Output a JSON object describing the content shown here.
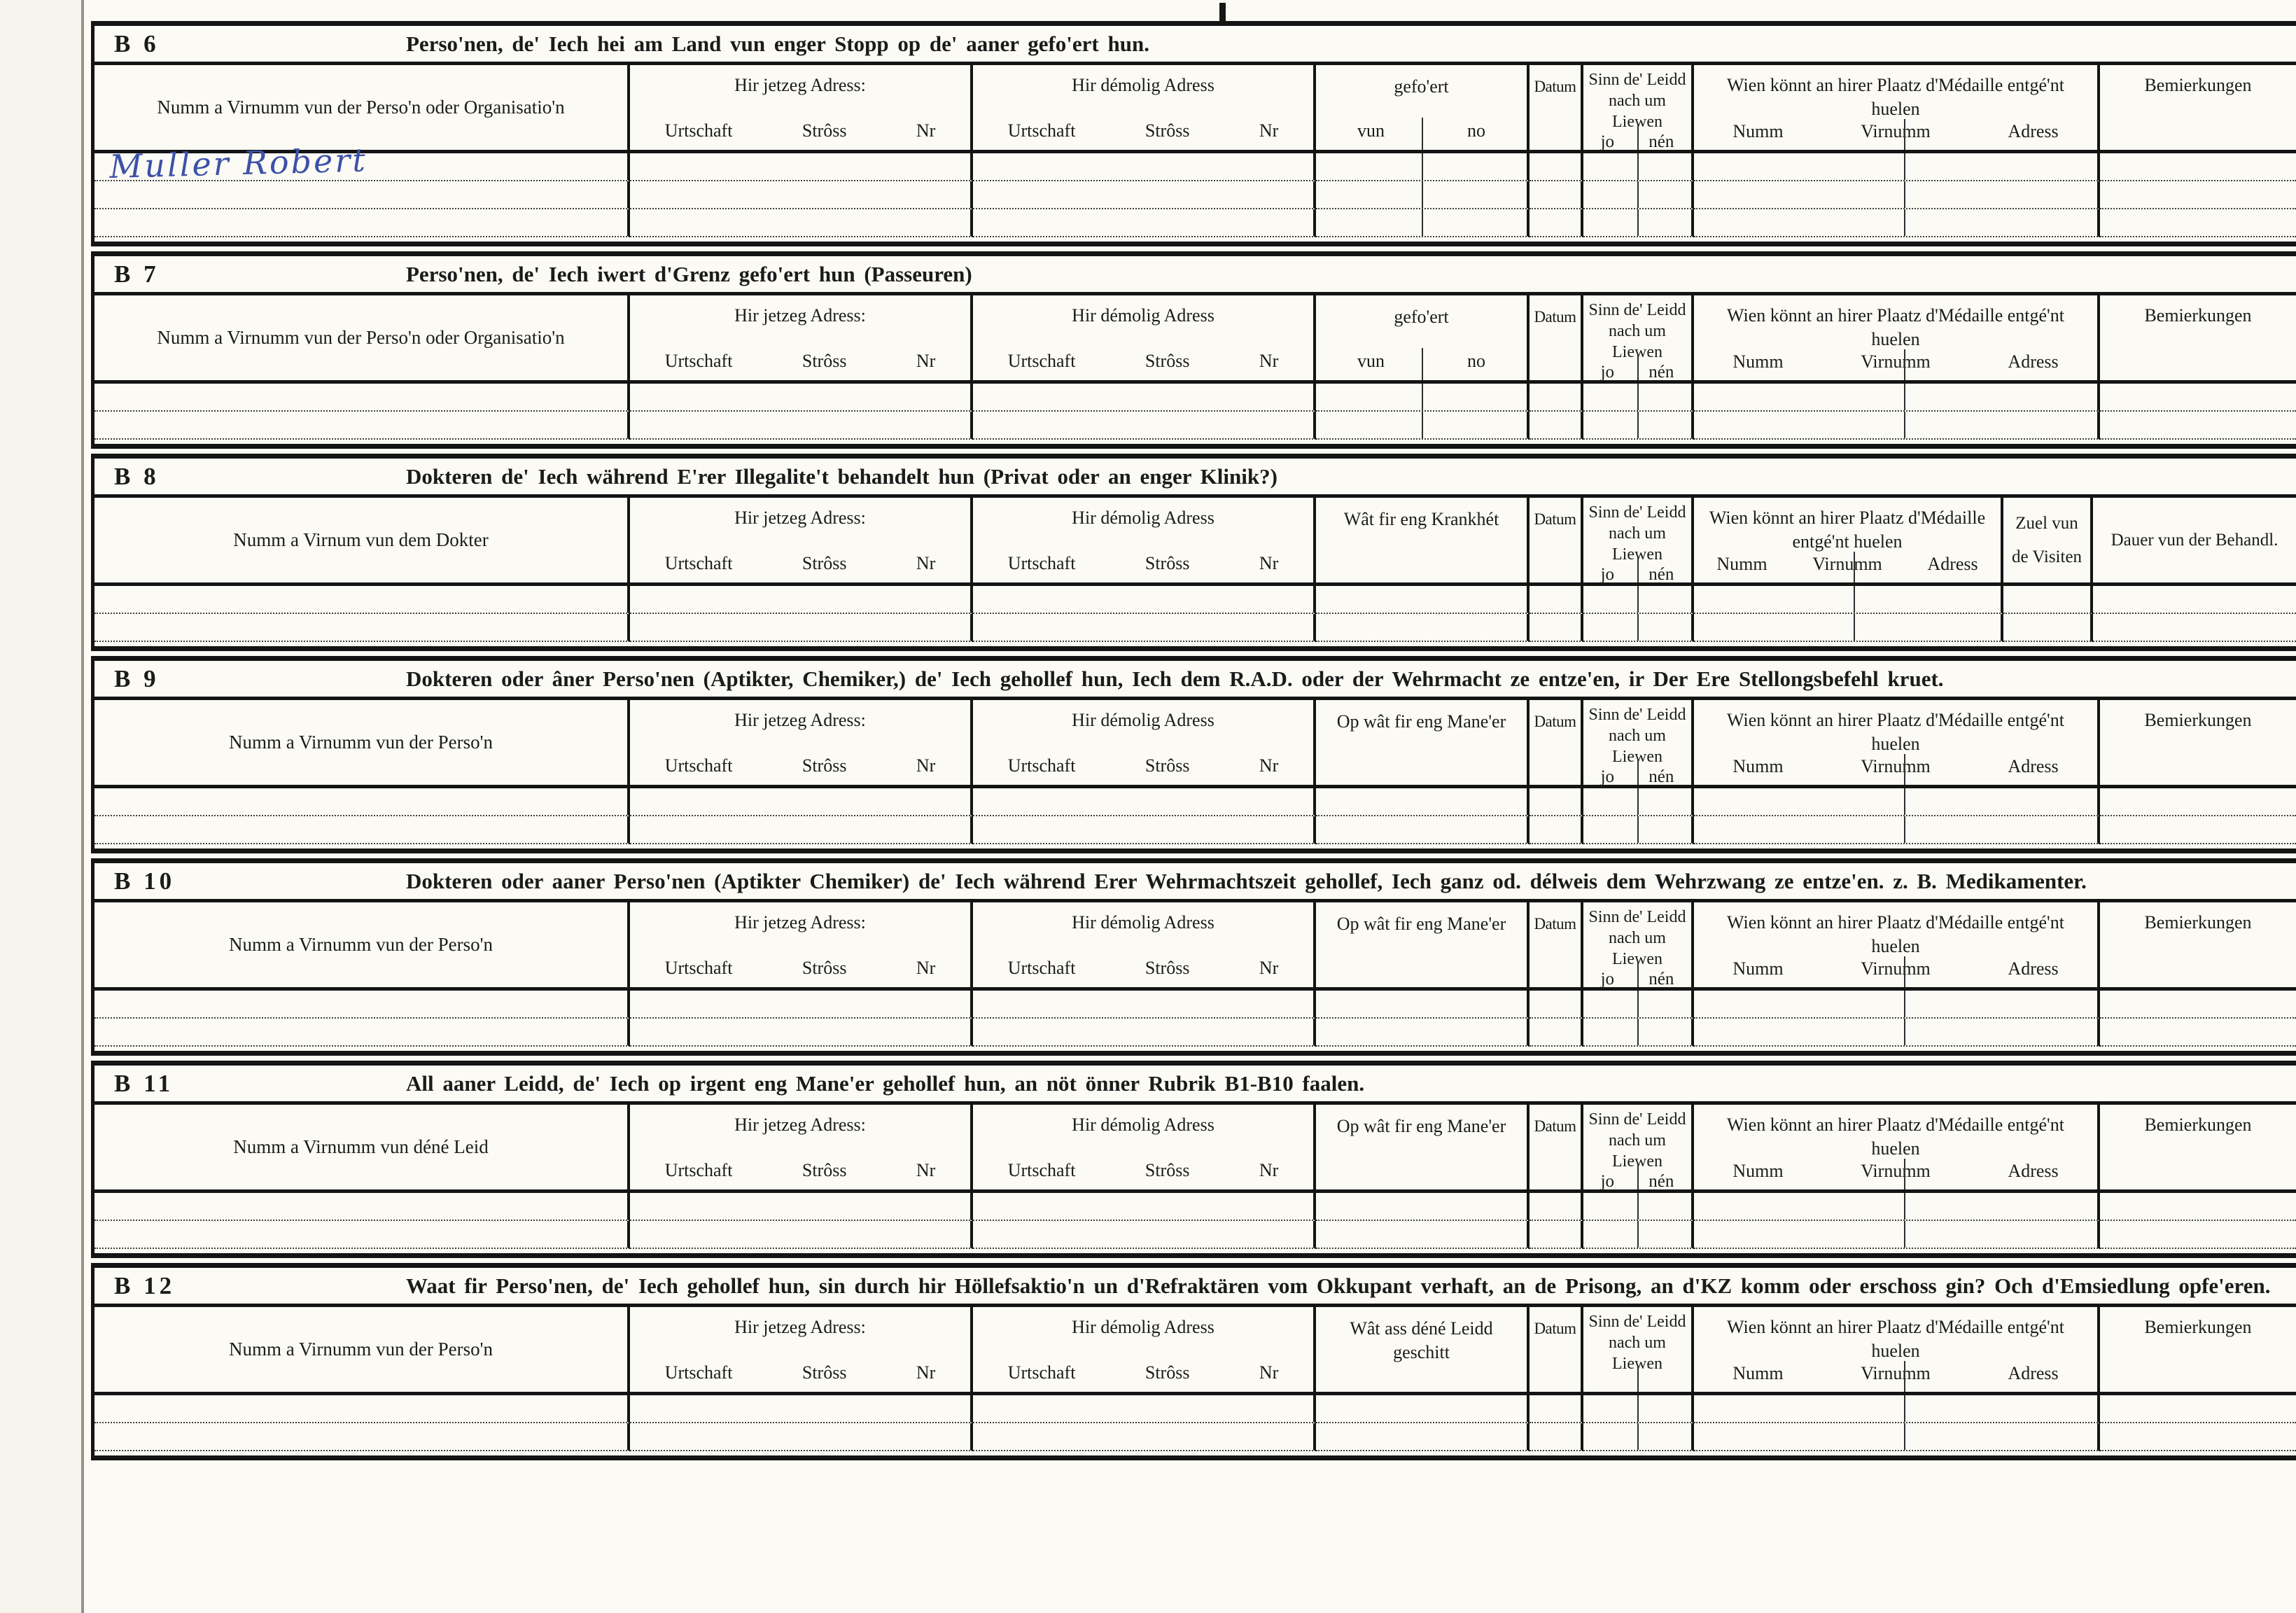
{
  "colors": {
    "paper": "#fbfaf4",
    "ink": "#1b1b1b",
    "handwriting_blue": "#3c51a8"
  },
  "sections": [
    {
      "id": "B 6",
      "title": "Perso'nen, de' Iech hei am Land vun enger Stopp op de' aaner gefo'ert hun.",
      "name_col": "Numm a Virnumm vun der Perso'n oder Organisatio'n",
      "addr_now": {
        "label": "Hir jetzeg Adress:",
        "sub": [
          "Urtschaft",
          "Strôss",
          "Nr"
        ]
      },
      "addr_old": {
        "label": "Hir démolig Adress",
        "sub": [
          "Urtschaft",
          "Strôss",
          "Nr"
        ]
      },
      "col4": {
        "label": "gefo'ert",
        "sub": [
          "vun",
          "no"
        ]
      },
      "datum": "Datum",
      "alive": {
        "label": "Sinn de' Leidd nach um Liewen",
        "sub": [
          "jo",
          "nén"
        ]
      },
      "medal": {
        "label": "Wien könnt an hirer Plaatz d'Médaille entgé'nt huelen",
        "sub": [
          "Numm",
          "Virnumm",
          "Adress"
        ]
      },
      "last": {
        "label": "Bemierkungen"
      },
      "rows": [
        {
          "name": "Muller Robert"
        },
        {},
        {}
      ]
    },
    {
      "id": "B 7",
      "title": "Perso'nen, de' Iech iwert d'Grenz gefo'ert hun (Passeuren)",
      "name_col": "Numm a Virnumm vun der Perso'n oder Organisatio'n",
      "addr_now": {
        "label": "Hir jetzeg Adress:",
        "sub": [
          "Urtschaft",
          "Strôss",
          "Nr"
        ]
      },
      "addr_old": {
        "label": "Hir démolig Adress",
        "sub": [
          "Urtschaft",
          "Strôss",
          "Nr"
        ]
      },
      "col4": {
        "label": "gefo'ert",
        "sub": [
          "vun",
          "no"
        ]
      },
      "datum": "Datum",
      "alive": {
        "label": "Sinn de' Leidd nach um Liewen",
        "sub": [
          "jo",
          "nén"
        ]
      },
      "medal": {
        "label": "Wien könnt an hirer Plaatz d'Médaille entgé'nt huelen",
        "sub": [
          "Numm",
          "Virnumm",
          "Adress"
        ]
      },
      "last": {
        "label": "Bemierkungen"
      },
      "rows": [
        {},
        {}
      ]
    },
    {
      "id": "B 8",
      "title": "Dokteren de' Iech während E'rer Illegalite't behandelt hun (Privat oder an enger Klinik?)",
      "name_col": "Numm a Virnum vun dem Dokter",
      "addr_now": {
        "label": "Hir jetzeg Adress:",
        "sub": [
          "Urtschaft",
          "Strôss",
          "Nr"
        ]
      },
      "addr_old": {
        "label": "Hir démolig Adress",
        "sub": [
          "Urtschaft",
          "Strôss",
          "Nr"
        ]
      },
      "col4": {
        "label": "Wât fir eng Krankhét"
      },
      "datum": "Datum",
      "alive": {
        "label": "Sinn de' Leidd nach um Liewen",
        "sub": [
          "jo",
          "nén"
        ]
      },
      "medal": {
        "label": "Wien könnt an hirer Plaatz d'Médaille entgé'nt huelen",
        "sub": [
          "Numm",
          "Virnumm",
          "Adress"
        ]
      },
      "extra": [
        {
          "label": "Zuel vun de Visiten"
        },
        {
          "label": "Dauer vun der Behandl."
        }
      ],
      "rows": [
        {},
        {}
      ]
    },
    {
      "id": "B 9",
      "title": "Dokteren oder âner Perso'nen (Aptikter, Chemiker,) de' Iech gehollef hun, Iech dem R.A.D. oder der Wehrmacht ze entze'en, ir Der Ere Stellongsbefehl kruet.",
      "name_col": "Numm a Virnumm vun der Perso'n",
      "addr_now": {
        "label": "Hir jetzeg Adress:",
        "sub": [
          "Urtschaft",
          "Strôss",
          "Nr"
        ]
      },
      "addr_old": {
        "label": "Hir démolig Adress",
        "sub": [
          "Urtschaft",
          "Strôss",
          "Nr"
        ]
      },
      "col4": {
        "label": "Op wât fir eng Mane'er"
      },
      "datum": "Datum",
      "alive": {
        "label": "Sinn de' Leidd nach um Liewen",
        "sub": [
          "jo",
          "nén"
        ]
      },
      "medal": {
        "label": "Wien könnt an hirer Plaatz d'Médaille entgé'nt huelen",
        "sub": [
          "Numm",
          "Virnumm",
          "Adress"
        ]
      },
      "last": {
        "label": "Bemierkungen"
      },
      "rows": [
        {},
        {}
      ]
    },
    {
      "id": "B 10",
      "title": "Dokteren oder aaner Perso'nen (Aptikter Chemiker) de' Iech während Erer Wehrmachtszeit gehollef, Iech ganz od. délweis dem Wehrzwang ze entze'en. z. B. Medikamenter.",
      "name_col": "Numm a Virnumm vun der Perso'n",
      "addr_now": {
        "label": "Hir jetzeg Adress:",
        "sub": [
          "Urtschaft",
          "Strôss",
          "Nr"
        ]
      },
      "addr_old": {
        "label": "Hir démolig Adress",
        "sub": [
          "Urtschaft",
          "Strôss",
          "Nr"
        ]
      },
      "col4": {
        "label": "Op wât fir eng Mane'er"
      },
      "datum": "Datum",
      "alive": {
        "label": "Sinn de' Leidd nach um Liewen",
        "sub": [
          "jo",
          "nén"
        ]
      },
      "medal": {
        "label": "Wien könnt an hirer Plaatz d'Médaille entgé'nt huelen",
        "sub": [
          "Numm",
          "Virnumm",
          "Adress"
        ]
      },
      "last": {
        "label": "Bemierkungen"
      },
      "rows": [
        {},
        {}
      ]
    },
    {
      "id": "B 11",
      "title": "All aaner Leidd, de' Iech op irgent eng Mane'er gehollef hun, an nöt önner Rubrik B1-B10 faalen.",
      "name_col": "Numm a Virnumm vun déné Leid",
      "addr_now": {
        "label": "Hir jetzeg Adress:",
        "sub": [
          "Urtschaft",
          "Strôss",
          "Nr"
        ]
      },
      "addr_old": {
        "label": "Hir démolig Adress",
        "sub": [
          "Urtschaft",
          "Strôss",
          "Nr"
        ]
      },
      "col4": {
        "label": "Op wât fir eng Mane'er"
      },
      "datum": "Datum",
      "alive": {
        "label": "Sinn de' Leidd nach um Liewen",
        "sub": [
          "jo",
          "nén"
        ]
      },
      "medal": {
        "label": "Wien könnt an hirer Plaatz d'Médaille entgé'nt huelen",
        "sub": [
          "Numm",
          "Virnumm",
          "Adress"
        ]
      },
      "last": {
        "label": "Bemierkungen"
      },
      "rows": [
        {},
        {}
      ]
    },
    {
      "id": "B 12",
      "title": "Waat fir Perso'nen, de' Iech gehollef hun, sin durch hir Höllefsaktio'n un d'Refraktären vom Okkupant verhaft, an de Prisong, an d'KZ komm oder erschoss gin? Och d'Emsiedlung opfe'eren.",
      "name_col": "Numm a Virnumm vun der Perso'n",
      "addr_now": {
        "label": "Hir jetzeg Adress:",
        "sub": [
          "Urtschaft",
          "Strôss",
          "Nr"
        ]
      },
      "addr_old": {
        "label": "Hir démolig Adress",
        "sub": [
          "Urtschaft",
          "Strôss",
          "Nr"
        ]
      },
      "col4": {
        "label": "Wât ass déné Leidd geschitt"
      },
      "datum": "Datum",
      "alive": {
        "label": "Sinn de' Leidd nach um Liewen",
        "sub": []
      },
      "medal": {
        "label": "Wien könnt an hirer Plaatz d'Médaille entgé'nt huelen",
        "sub": [
          "Numm",
          "Virnumm",
          "Adress"
        ]
      },
      "last": {
        "label": "Bemierkungen"
      },
      "rows": [
        {},
        {}
      ]
    }
  ]
}
